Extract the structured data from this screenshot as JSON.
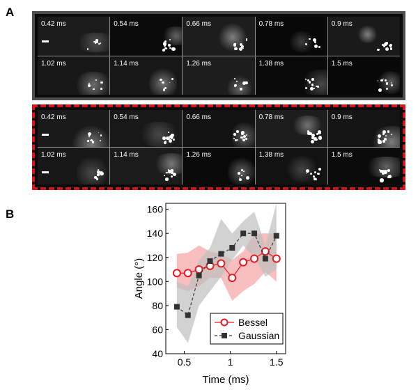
{
  "figure": {
    "panel_a_label": "A",
    "panel_b_label": "B"
  },
  "frames_gaussian": [
    "0.42 ms",
    "0.54 ms",
    "0.66 ms",
    "0.78 ms",
    "0.9 ms",
    "1.02 ms",
    "1.14 ms",
    "1.26 ms",
    "1.38 ms",
    "1.5 ms"
  ],
  "frames_bessel": [
    "0.42 ms",
    "0.54 ms",
    "0.66 ms",
    "0.78 ms",
    "0.9 ms",
    "1.02 ms",
    "1.14 ms",
    "1.26 ms",
    "1.38 ms",
    "1.5 ms"
  ],
  "colors": {
    "bessel": "#e8191f",
    "bessel_band": "#f7a9ab",
    "gaussian": "#333333",
    "gaussian_band": "#bfbfbf",
    "gray_box": "#4d4d4d",
    "red_box": "#d9151b"
  },
  "chart_data": {
    "type": "line",
    "title": "",
    "xlabel": "Time (ms)",
    "ylabel": "Angle (°)",
    "xlim": [
      0.3,
      1.6
    ],
    "ylim": [
      40,
      165
    ],
    "xticks": [
      0.5,
      1.0,
      1.5
    ],
    "xtick_labels": [
      "0.5",
      "1",
      "1.5"
    ],
    "yticks": [
      40,
      60,
      80,
      100,
      120,
      140,
      160
    ],
    "ytick_labels": [
      "40",
      "60",
      "80",
      "100",
      "120",
      "140",
      "160"
    ],
    "legend_position": "bottom-right",
    "series": [
      {
        "name": "Bessel",
        "marker": "open-circle",
        "line": "solid",
        "x": [
          0.42,
          0.54,
          0.66,
          0.78,
          0.9,
          1.02,
          1.14,
          1.26,
          1.38,
          1.5
        ],
        "y": [
          107,
          107,
          110,
          113,
          115,
          103,
          116,
          119,
          125,
          119
        ],
        "band_upper": [
          123,
          124,
          130,
          125,
          123,
          118,
          125,
          140,
          140,
          140
        ],
        "band_lower": [
          95,
          92,
          96,
          103,
          103,
          84,
          92,
          98,
          108,
          100
        ]
      },
      {
        "name": "Gaussian",
        "marker": "filled-square",
        "line": "dashed",
        "x": [
          0.42,
          0.54,
          0.66,
          0.78,
          0.9,
          1.02,
          1.14,
          1.26,
          1.38,
          1.5
        ],
        "y": [
          79,
          72,
          105,
          117,
          123,
          128,
          140,
          140,
          119,
          138
        ],
        "band_upper": [
          100,
          96,
          118,
          128,
          152,
          140,
          150,
          158,
          130,
          165
        ],
        "band_lower": [
          62,
          49,
          80,
          92,
          104,
          118,
          130,
          120,
          104,
          110
        ]
      }
    ]
  }
}
